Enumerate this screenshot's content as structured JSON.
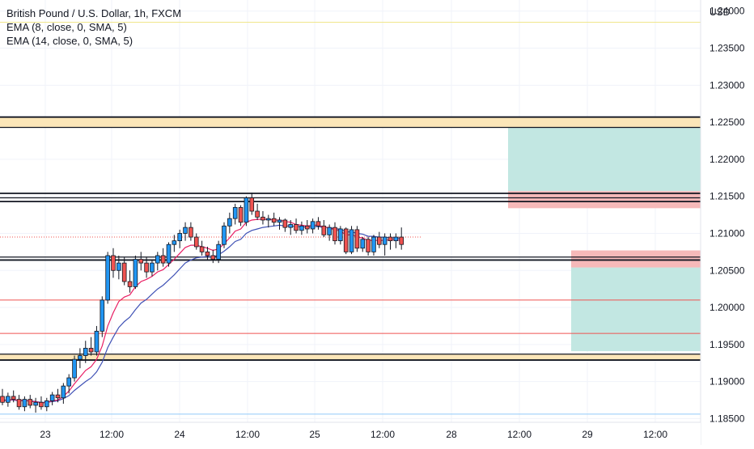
{
  "legend": {
    "title": "British Pound / U.S. Dollar, 1h, FXCM",
    "ema1": "EMA (8, close, 0, SMA, 5)",
    "ema2": "EMA (14, close, 0, SMA, 5)"
  },
  "colors": {
    "bull": "#2196f3",
    "bear": "#ef5350",
    "ema_fast": "#e91e63",
    "ema_slow": "#3f51b5",
    "zone_fill": "#fbe6b8",
    "profit_fill": "#bfe6e0",
    "loss_fill": "#f5b5b5",
    "red_line": "#ef5350",
    "yellow_line": "#f0e68c",
    "blue_line": "#90caf9"
  },
  "chart_data": {
    "type": "candlestick",
    "symbol": "British Pound / U.S. Dollar",
    "timeframe": "1h",
    "source": "FXCM",
    "currency_label": "USD",
    "ylim": [
      1.1845,
      1.2415
    ],
    "y_ticks": [
      "1.24000",
      "1.23500",
      "1.23000",
      "1.22500",
      "1.22000",
      "1.21500",
      "1.21000",
      "1.20500",
      "1.20000",
      "1.19500",
      "1.19000",
      "1.18500"
    ],
    "x_ticks": [
      "23",
      "12:00",
      "24",
      "12:00",
      "25",
      "12:00",
      "28",
      "12:00",
      "29",
      "12:00"
    ],
    "candles": [
      [
        1.188,
        1.189,
        1.1868,
        1.1872
      ],
      [
        1.1872,
        1.1885,
        1.1866,
        1.188
      ],
      [
        1.188,
        1.1888,
        1.1872,
        1.1876
      ],
      [
        1.1876,
        1.1882,
        1.1862,
        1.1866
      ],
      [
        1.1866,
        1.188,
        1.186,
        1.1876
      ],
      [
        1.1876,
        1.1882,
        1.1864,
        1.1868
      ],
      [
        1.1868,
        1.1878,
        1.1858,
        1.1872
      ],
      [
        1.1872,
        1.188,
        1.1862,
        1.1866
      ],
      [
        1.1866,
        1.1878,
        1.186,
        1.1874
      ],
      [
        1.1874,
        1.1886,
        1.1868,
        1.1882
      ],
      [
        1.1882,
        1.189,
        1.1872,
        1.1878
      ],
      [
        1.1878,
        1.1898,
        1.187,
        1.1894
      ],
      [
        1.1894,
        1.191,
        1.1884,
        1.1905
      ],
      [
        1.1905,
        1.1935,
        1.19,
        1.193
      ],
      [
        1.193,
        1.1945,
        1.1918,
        1.1935
      ],
      [
        1.1935,
        1.1955,
        1.1925,
        1.1945
      ],
      [
        1.1945,
        1.196,
        1.1935,
        1.194
      ],
      [
        1.194,
        1.1975,
        1.1935,
        1.1968
      ],
      [
        1.1968,
        1.2015,
        1.196,
        1.201
      ],
      [
        1.201,
        1.2075,
        1.2005,
        1.207
      ],
      [
        1.207,
        1.208,
        1.204,
        1.205
      ],
      [
        1.205,
        1.207,
        1.2038,
        1.206
      ],
      [
        1.206,
        1.2068,
        1.203,
        1.2035
      ],
      [
        1.2035,
        1.205,
        1.202,
        1.2028
      ],
      [
        1.2028,
        1.207,
        1.2025,
        1.2065
      ],
      [
        1.2065,
        1.2075,
        1.205,
        1.206
      ],
      [
        1.206,
        1.2068,
        1.204,
        1.2048
      ],
      [
        1.2048,
        1.2065,
        1.2042,
        1.206
      ],
      [
        1.206,
        1.2075,
        1.205,
        1.207
      ],
      [
        1.207,
        1.208,
        1.2055,
        1.206
      ],
      [
        1.206,
        1.2088,
        1.2055,
        1.2085
      ],
      [
        1.2085,
        1.2098,
        1.2075,
        1.209
      ],
      [
        1.209,
        1.2105,
        1.208,
        1.21
      ],
      [
        1.21,
        1.2115,
        1.209,
        1.2108
      ],
      [
        1.2108,
        1.2115,
        1.209,
        1.2095
      ],
      [
        1.2095,
        1.21,
        1.2078,
        1.2082
      ],
      [
        1.2082,
        1.209,
        1.207,
        1.2075
      ],
      [
        1.2075,
        1.2082,
        1.2065,
        1.207
      ],
      [
        1.207,
        1.2078,
        1.206,
        1.2065
      ],
      [
        1.2065,
        1.209,
        1.206,
        1.2085
      ],
      [
        1.2085,
        1.2115,
        1.208,
        1.211
      ],
      [
        1.211,
        1.2128,
        1.21,
        1.212
      ],
      [
        1.212,
        1.214,
        1.2112,
        1.2135
      ],
      [
        1.2135,
        1.2138,
        1.211,
        1.2115
      ],
      [
        1.2115,
        1.215,
        1.211,
        1.2148
      ],
      [
        1.2148,
        1.2155,
        1.2125,
        1.213
      ],
      [
        1.213,
        1.214,
        1.2118,
        1.2122
      ],
      [
        1.2122,
        1.213,
        1.2112,
        1.2118
      ],
      [
        1.2118,
        1.2125,
        1.2108,
        1.212
      ],
      [
        1.212,
        1.2128,
        1.211,
        1.2115
      ],
      [
        1.2115,
        1.2122,
        1.2105,
        1.2118
      ],
      [
        1.2118,
        1.212,
        1.2102,
        1.2108
      ],
      [
        1.2108,
        1.2118,
        1.2098,
        1.2112
      ],
      [
        1.2112,
        1.212,
        1.21,
        1.2104
      ],
      [
        1.2104,
        1.2116,
        1.2098,
        1.211
      ],
      [
        1.211,
        1.2118,
        1.21,
        1.2106
      ],
      [
        1.2106,
        1.212,
        1.21,
        1.2116
      ],
      [
        1.2116,
        1.2122,
        1.2105,
        1.211
      ],
      [
        1.211,
        1.2118,
        1.2095,
        1.2098
      ],
      [
        1.2098,
        1.2112,
        1.209,
        1.2108
      ],
      [
        1.2108,
        1.2115,
        1.2085,
        1.209
      ],
      [
        1.209,
        1.211,
        1.2085,
        1.2106
      ],
      [
        1.2106,
        1.2108,
        1.2072,
        1.2075
      ],
      [
        1.2075,
        1.211,
        1.2072,
        1.2105
      ],
      [
        1.2105,
        1.211,
        1.2075,
        1.208
      ],
      [
        1.208,
        1.2095,
        1.2075,
        1.2092
      ],
      [
        1.2092,
        1.2095,
        1.207,
        1.2075
      ],
      [
        1.2075,
        1.2098,
        1.207,
        1.2095
      ],
      [
        1.2095,
        1.2102,
        1.208,
        1.2085
      ],
      [
        1.2085,
        1.21,
        1.207,
        1.2095
      ],
      [
        1.2095,
        1.21,
        1.2078,
        1.209
      ],
      [
        1.209,
        1.21,
        1.208,
        1.2095
      ],
      [
        1.2095,
        1.2108,
        1.2078,
        1.2085
      ]
    ],
    "ema_fast": [
      1.1874,
      1.1875,
      1.1876,
      1.1874,
      1.1875,
      1.1873,
      1.1873,
      1.1871,
      1.1872,
      1.1874,
      1.1875,
      1.188,
      1.1887,
      1.1897,
      1.1906,
      1.1915,
      1.192,
      1.193,
      1.1948,
      1.1975,
      1.1993,
      1.2008,
      1.2014,
      1.2017,
      1.2028,
      1.2035,
      1.2038,
      1.2042,
      1.2048,
      1.2051,
      1.2058,
      1.2065,
      1.2073,
      1.2081,
      1.2084,
      1.2084,
      1.2082,
      1.208,
      1.2077,
      1.2079,
      1.2086,
      1.2094,
      1.2103,
      1.2106,
      1.2115,
      1.2118,
      1.2119,
      1.2119,
      1.2119,
      1.2118,
      1.2118,
      1.2116,
      1.2115,
      1.2112,
      1.2111,
      1.211,
      1.2111,
      1.2111,
      1.2108,
      1.2108,
      1.2104,
      1.2104,
      1.2097,
      1.2099,
      1.2095,
      1.2094,
      1.209,
      1.2091,
      1.209,
      1.2091,
      1.2091,
      1.2092,
      1.209
    ],
    "ema_slow": [
      1.1875,
      1.1875,
      1.1875,
      1.1874,
      1.1874,
      1.1874,
      1.1873,
      1.1872,
      1.1872,
      1.1873,
      1.1874,
      1.1877,
      1.1881,
      1.1888,
      1.1894,
      1.19,
      1.1905,
      1.1913,
      1.1926,
      1.1946,
      1.196,
      1.1973,
      1.1981,
      1.1987,
      1.1997,
      1.2006,
      1.2011,
      1.2018,
      1.2025,
      1.203,
      1.2037,
      1.2044,
      1.2052,
      1.206,
      1.2064,
      1.2067,
      1.2068,
      1.2069,
      1.2068,
      1.2071,
      1.2076,
      1.2082,
      1.2089,
      1.2092,
      1.21,
      1.2104,
      1.2106,
      1.2108,
      1.2109,
      1.211,
      1.2111,
      1.211,
      1.211,
      1.2109,
      1.2109,
      1.2108,
      1.2109,
      1.2109,
      1.2108,
      1.2108,
      1.2106,
      1.2106,
      1.2102,
      1.2102,
      1.21,
      1.2099,
      1.2096,
      1.2096,
      1.2095,
      1.2095,
      1.2094,
      1.2094,
      1.2093
    ],
    "horizontal_lines": [
      {
        "price": 1.2385,
        "color": "#f0e68c"
      },
      {
        "price": 1.201,
        "color": "#ef5350"
      },
      {
        "price": 1.1965,
        "color": "#ef5350"
      },
      {
        "price": 1.1856,
        "color": "#90caf9"
      },
      {
        "price": 1.2095,
        "color": "#ef5350",
        "dashed": true
      }
    ],
    "zones": [
      {
        "from": 1.2243,
        "to": 1.2257
      },
      {
        "from": 1.1929,
        "to": 1.1937
      }
    ],
    "support_resistance_lines": [
      1.2257,
      1.2243,
      1.2154,
      1.2148,
      1.2143,
      1.2068,
      1.2064,
      1.1937,
      1.1929
    ],
    "positions": [
      {
        "kind": "short",
        "stop_from": 1.2134,
        "stop_to": 1.2157,
        "target_from": 1.2157,
        "target_to": 1.2251,
        "from_label": "12:00",
        "to_label": "right-edge"
      },
      {
        "kind": "short",
        "stop_from": 1.2054,
        "stop_to": 1.2077,
        "target_from": 1.1941,
        "target_to": 1.2054,
        "from_label": "29",
        "to_label": "right-edge"
      }
    ]
  }
}
